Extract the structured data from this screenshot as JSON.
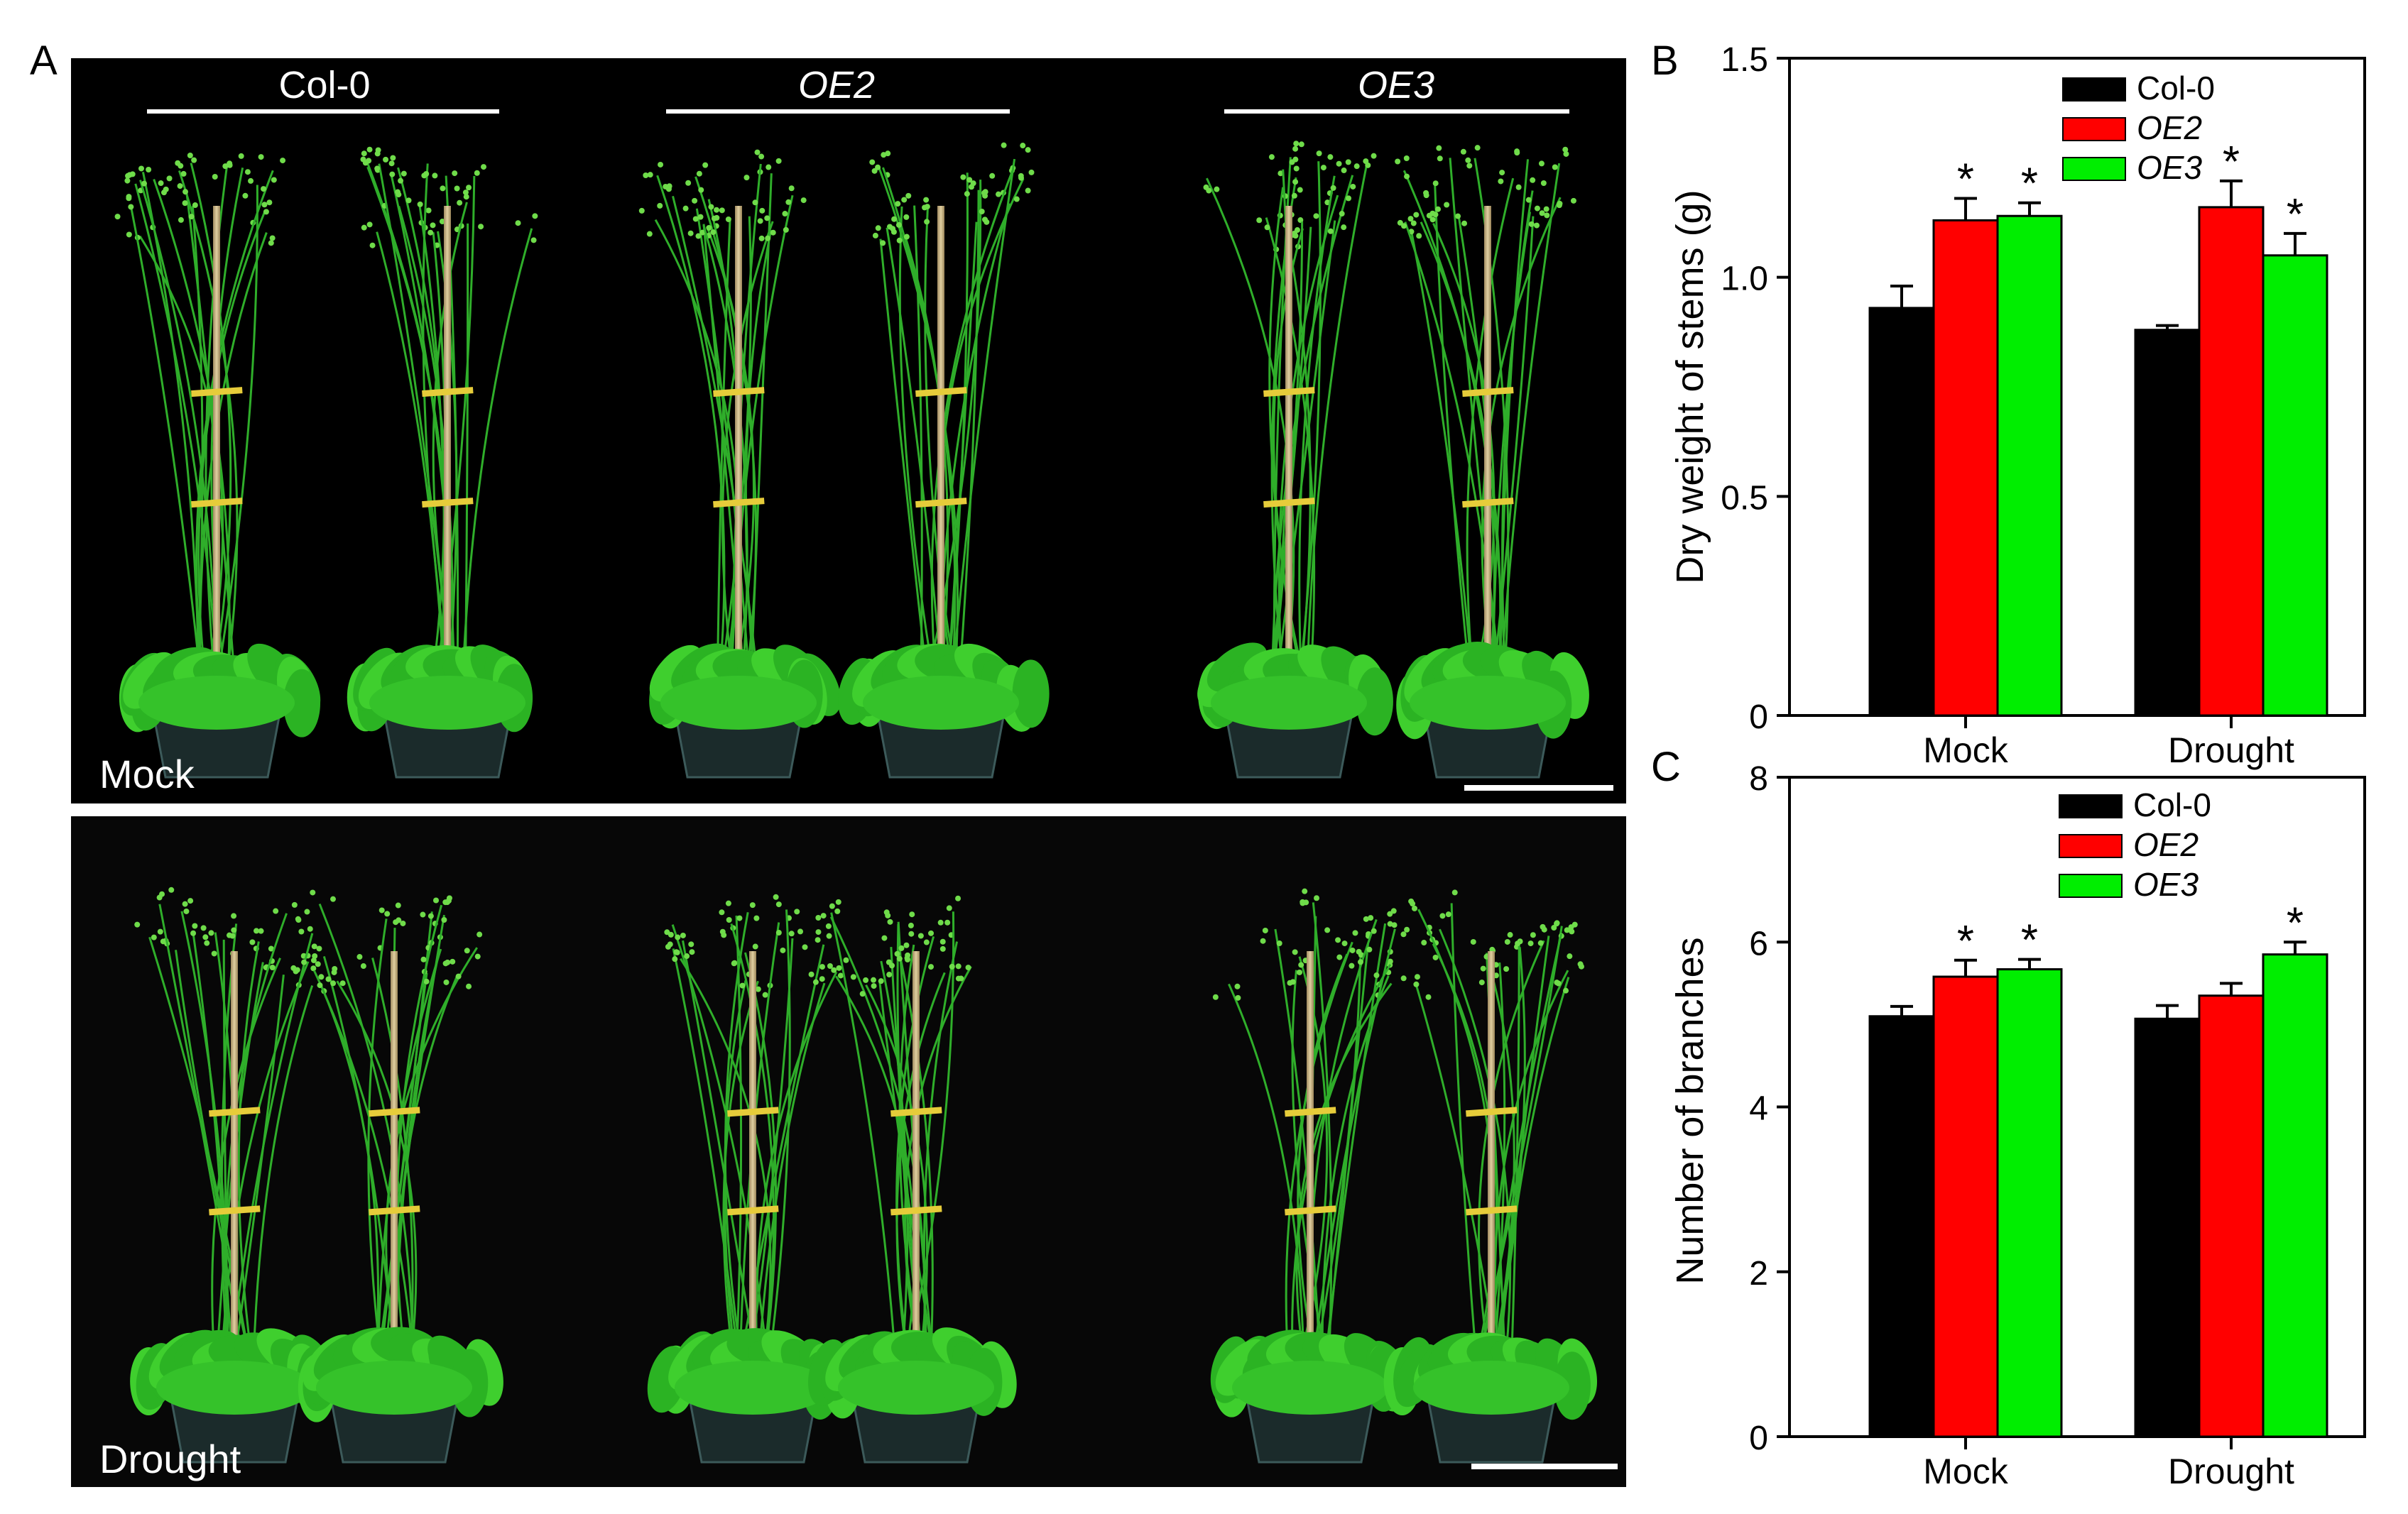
{
  "panel_a": {
    "letter": "A",
    "genotypes": [
      "Col-0",
      "OE2",
      "OE3"
    ],
    "genotype_italic": [
      false,
      true,
      true
    ],
    "photos": [
      {
        "condition": "Mock",
        "background": "#000000"
      },
      {
        "condition": "Drought",
        "background": "#070707"
      }
    ]
  },
  "chart_data": [
    {
      "panel": "B",
      "type": "bar",
      "categories": [
        "Mock",
        "Drought"
      ],
      "ylabel": "Dry weight of stems (g)",
      "ylim": [
        0,
        1.5
      ],
      "yticks": [
        0,
        0.5,
        1.0,
        1.5
      ],
      "yticklabels": [
        "0",
        "0.5",
        "1.0",
        "1.5"
      ],
      "legend_position": "top-right",
      "series": [
        {
          "name": "Col-0",
          "italic": false,
          "color": "#000000",
          "values": [
            0.93,
            0.88
          ],
          "errors": [
            0.05,
            0.01
          ],
          "significant": [
            false,
            false
          ]
        },
        {
          "name": "OE2",
          "italic": true,
          "color": "#ff0000",
          "values": [
            1.13,
            1.16
          ],
          "errors": [
            0.05,
            0.06
          ],
          "significant": [
            true,
            true
          ]
        },
        {
          "name": "OE3",
          "italic": true,
          "color": "#00ee00",
          "values": [
            1.14,
            1.05
          ],
          "errors": [
            0.03,
            0.05
          ],
          "significant": [
            true,
            true
          ]
        }
      ],
      "significance_marker": "*"
    },
    {
      "panel": "C",
      "type": "bar",
      "categories": [
        "Mock",
        "Drought"
      ],
      "ylabel": "Number of branches",
      "ylim": [
        0,
        8
      ],
      "yticks": [
        0,
        2,
        4,
        6,
        8
      ],
      "yticklabels": [
        "0",
        "2",
        "4",
        "6",
        "8"
      ],
      "legend_position": "top-center",
      "series": [
        {
          "name": "Col-0",
          "italic": false,
          "color": "#000000",
          "values": [
            5.1,
            5.07
          ],
          "errors": [
            0.12,
            0.16
          ],
          "significant": [
            false,
            false
          ]
        },
        {
          "name": "OE2",
          "italic": true,
          "color": "#ff0000",
          "values": [
            5.58,
            5.35
          ],
          "errors": [
            0.2,
            0.15
          ],
          "significant": [
            true,
            false
          ]
        },
        {
          "name": "OE3",
          "italic": true,
          "color": "#00ee00",
          "values": [
            5.67,
            5.85
          ],
          "errors": [
            0.12,
            0.15
          ],
          "significant": [
            true,
            true
          ]
        }
      ],
      "significance_marker": "*"
    }
  ]
}
